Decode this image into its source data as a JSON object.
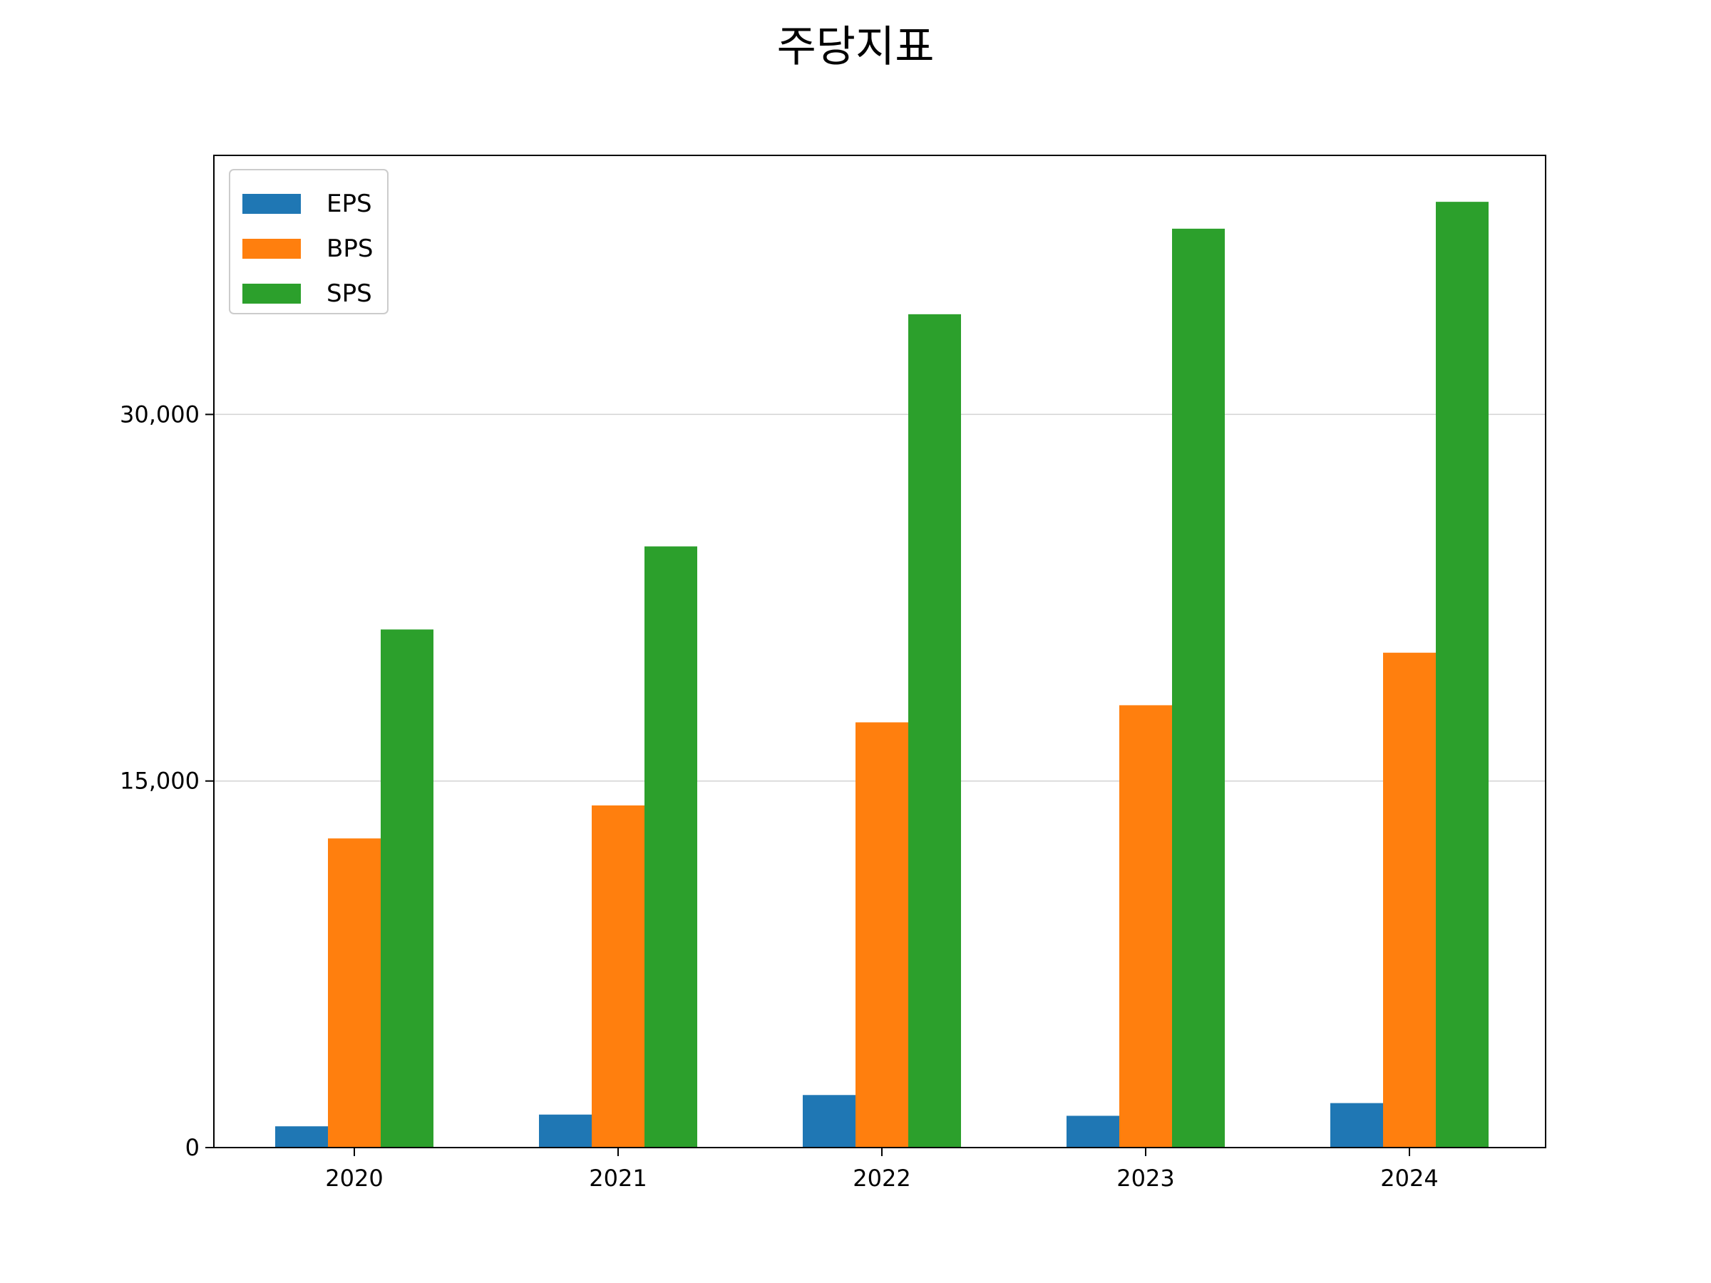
{
  "chart_data": {
    "type": "bar",
    "title": "주당지표",
    "xlabel": "",
    "ylabel": "",
    "categories": [
      "2020",
      "2021",
      "2022",
      "2023",
      "2024"
    ],
    "series": [
      {
        "name": "EPS",
        "color": "#1f77b4",
        "values": [
          870,
          1350,
          2150,
          1300,
          1820
        ]
      },
      {
        "name": "BPS",
        "color": "#ff7f0e",
        "values": [
          12650,
          14000,
          17400,
          18100,
          20250
        ]
      },
      {
        "name": "SPS",
        "color": "#2ca02c",
        "values": [
          21200,
          24600,
          34100,
          37600,
          38700
        ]
      }
    ],
    "ylim": [
      0,
      40600
    ],
    "yticks": [
      0,
      15000,
      30000
    ],
    "ytick_labels": [
      "0",
      "15,000",
      "30,000"
    ],
    "grid": "horizontal",
    "legend": "top-left"
  }
}
